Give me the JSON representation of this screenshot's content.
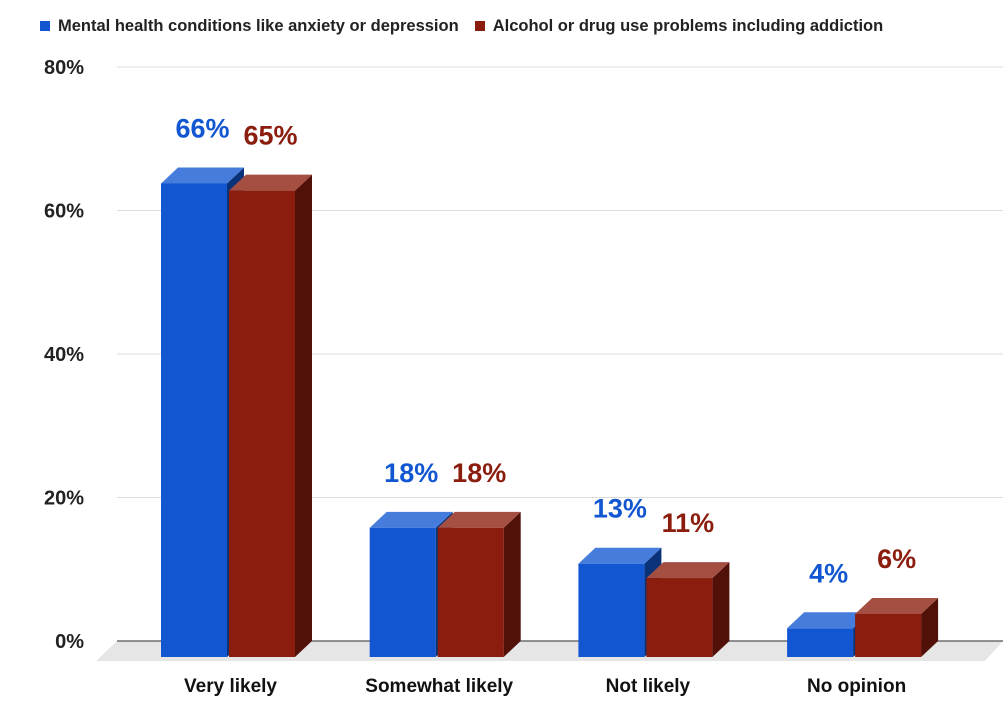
{
  "chart_data": {
    "type": "bar",
    "categories": [
      "Very likely",
      "Somewhat likely",
      "Not likely",
      "No opinion"
    ],
    "series": [
      {
        "name": "Mental health conditions like anxiety or depression",
        "values": [
          66,
          18,
          13,
          4
        ],
        "labels": [
          "66%",
          "18%",
          "13%",
          "4%"
        ],
        "color": "#1257d1"
      },
      {
        "name": "Alcohol or drug use problems including addiction",
        "values": [
          65,
          18,
          11,
          6
        ],
        "labels": [
          "65%",
          "18%",
          "11%",
          "6%"
        ],
        "color": "#8b1d0e"
      }
    ],
    "ylim": [
      0,
      80
    ],
    "yticks": [
      0,
      20,
      40,
      60,
      80
    ],
    "ytick_labels": [
      "0%",
      "20%",
      "40%",
      "60%",
      "80%"
    ],
    "grid": true,
    "legend_position": "top-left"
  }
}
